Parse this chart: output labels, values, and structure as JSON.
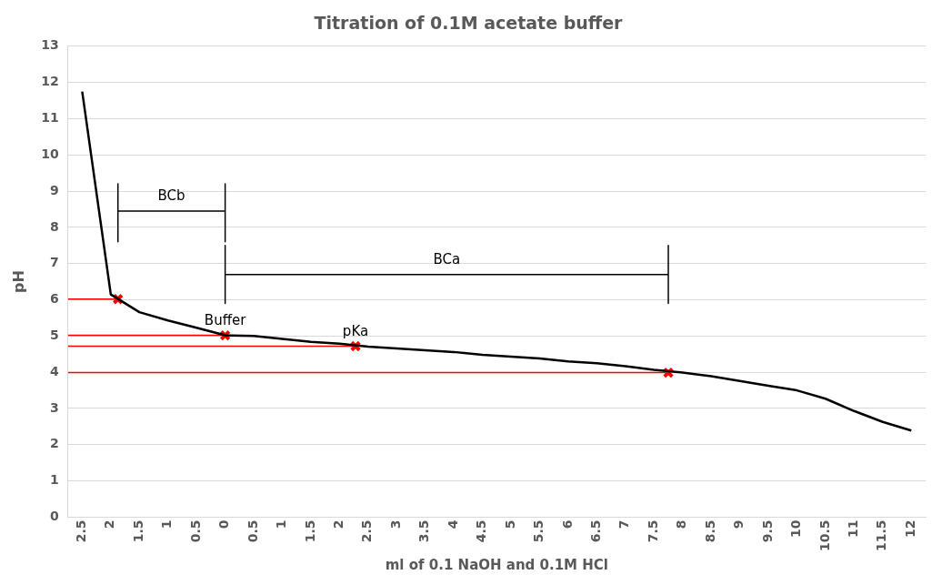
{
  "chart_data": {
    "type": "line",
    "title": "Titration of 0.1M acetate buffer",
    "xlabel": "ml of 0.1 NaOH and 0.1M HCl",
    "ylabel": "pH",
    "x": [
      -2.5,
      -2,
      -1.5,
      -1,
      -0.5,
      0,
      0.5,
      1,
      1.5,
      2,
      2.5,
      3,
      3.5,
      4,
      4.5,
      5,
      5.5,
      6,
      6.5,
      7,
      7.5,
      8,
      8.5,
      9,
      9.5,
      10,
      10.5,
      11,
      11.5,
      12
    ],
    "series": [
      {
        "color": "#000000",
        "marker": "none",
        "values": [
          11.75,
          6.15,
          5.66,
          5.43,
          5.23,
          5.02,
          5.0,
          4.92,
          4.84,
          4.79,
          4.71,
          4.66,
          4.61,
          4.56,
          4.48,
          4.43,
          4.38,
          4.3,
          4.25,
          4.17,
          4.07,
          3.99,
          3.89,
          3.76,
          3.63,
          3.5,
          3.27,
          2.93,
          2.63,
          2.39
        ]
      },
      {
        "type": "line",
        "color": "#ff0000",
        "marker": "none",
        "x": [
          -2.75,
          -1.875
        ],
        "values": [
          6.02,
          6.02
        ]
      },
      {
        "type": "line",
        "color": "#ff0000",
        "marker": "none",
        "x": [
          -2.75,
          0
        ],
        "values": [
          5.02,
          5.02
        ]
      },
      {
        "type": "line",
        "color": "#ff0000",
        "marker": "none",
        "x": [
          -2.75,
          2.28
        ],
        "values": [
          4.72,
          4.72
        ]
      },
      {
        "type": "line",
        "color": "#ff0000",
        "marker": "none",
        "x": [
          -2.75,
          7.75
        ],
        "values": [
          3.99,
          3.99
        ]
      },
      {
        "type": "line",
        "color": "#000000",
        "marker": "none",
        "x": [
          -1.875,
          -1.875,
          null,
          -1.875,
          0,
          null,
          0,
          0
        ],
        "values": [
          9.2,
          7.6,
          null,
          8.45,
          8.45,
          null,
          9.2,
          7.6
        ]
      },
      {
        "type": "line",
        "color": "#000000",
        "marker": "none",
        "x": [
          0,
          0,
          null,
          0,
          7.75,
          null,
          7.75,
          7.75
        ],
        "values": [
          7.5,
          5.9,
          null,
          6.7,
          6.7,
          null,
          7.5,
          5.9
        ]
      },
      {
        "type": "scatter",
        "color": "#ff0000",
        "marker": "cross",
        "x": [
          -1.875,
          0,
          2.28,
          7.75
        ],
        "values": [
          6.02,
          5.02,
          4.72,
          3.99
        ]
      }
    ],
    "annotations": [
      {
        "text": "BCb",
        "x": -0.94,
        "y": 8.45
      },
      {
        "text": "BCa",
        "x": 3.875,
        "y": 6.7
      },
      {
        "text": "Buffer",
        "x": 0,
        "y": 5.02
      },
      {
        "text": "pKa",
        "x": 2.28,
        "y": 4.72
      }
    ],
    "xlim": [
      -2.75,
      12.25
    ],
    "xticks": [
      {
        "value": -2.5,
        "label": "2.5"
      },
      {
        "value": -2,
        "label": "2"
      },
      {
        "value": -1.5,
        "label": "1.5"
      },
      {
        "value": -1,
        "label": "1"
      },
      {
        "value": -0.5,
        "label": "0.5"
      },
      0,
      0.5,
      1,
      1.5,
      2,
      2.5,
      3,
      3.5,
      4,
      4.5,
      5,
      5.5,
      6,
      6.5,
      7,
      7.5,
      8,
      8.5,
      9,
      9.5,
      10,
      10.5,
      11,
      11.5,
      12
    ],
    "ylim": [
      0,
      13
    ],
    "yticks": [
      0,
      1,
      2,
      3,
      4,
      5,
      6,
      7,
      8,
      9,
      10,
      11,
      12,
      13
    ],
    "grid": "y",
    "legend": false
  }
}
